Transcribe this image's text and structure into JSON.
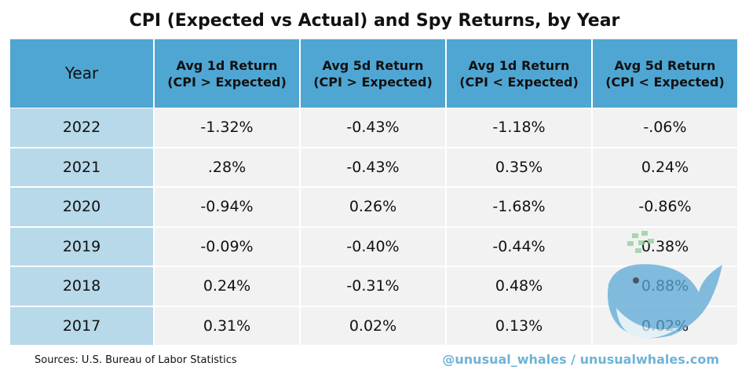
{
  "title": "CPI (Expected vs Actual) and Spy Returns, by Year",
  "table": {
    "header": [
      [
        "Year"
      ],
      [
        "Avg 1d Return",
        "(CPI > Expected)"
      ],
      [
        "Avg 5d Return",
        "(CPI > Expected)"
      ],
      [
        "Avg 1d Return",
        "(CPI < Expected)"
      ],
      [
        "Avg 5d Return",
        "(CPI < Expected)"
      ]
    ],
    "rows": [
      [
        "2022",
        "-1.32%",
        "-0.43%",
        "-1.18%",
        "-.06%"
      ],
      [
        "2021",
        ".28%",
        "-0.43%",
        "0.35%",
        "0.24%"
      ],
      [
        "2020",
        "-0.94%",
        "0.26%",
        "-1.68%",
        "-0.86%"
      ],
      [
        "2019",
        "-0.09%",
        "-0.40%",
        "-0.44%",
        "0.38%"
      ],
      [
        "2018",
        "0.24%",
        "-0.31%",
        "0.48%",
        "0.88%"
      ],
      [
        "2017",
        "0.31%",
        "0.02%",
        "0.13%",
        "0.02%"
      ]
    ]
  },
  "footer": {
    "source": "Sources: U.S. Bureau of Labor Statistics",
    "credit": "@unusual_whales / unusualwhales.com"
  }
}
